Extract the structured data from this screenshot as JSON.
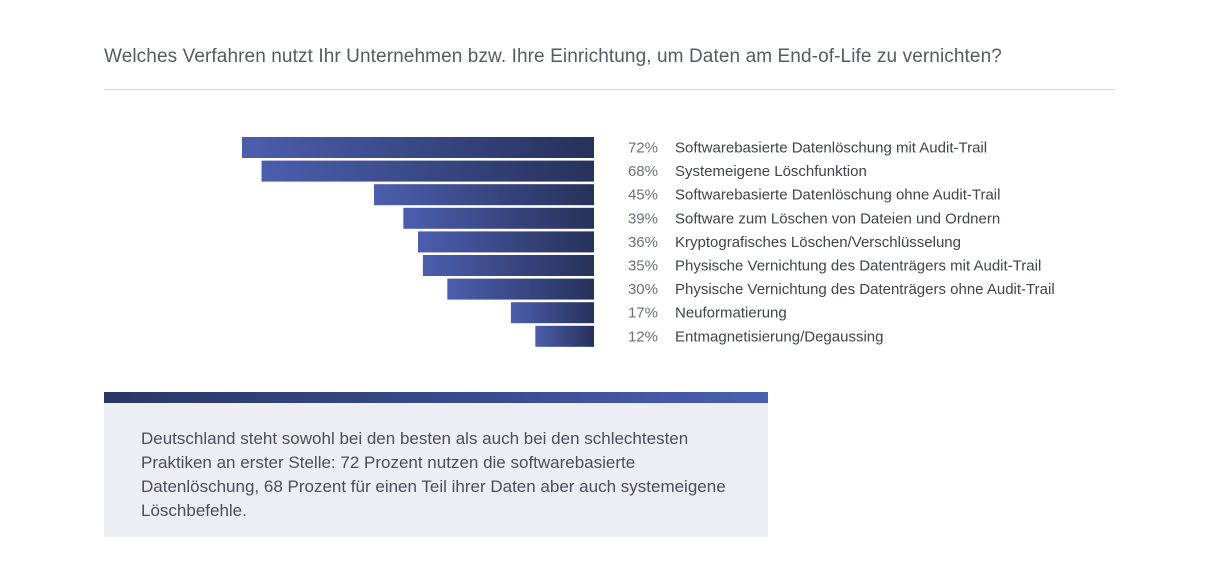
{
  "question": "Welches Verfahren nutzt Ihr Unternehmen bzw. Ihre Einrichtung, um Daten am End-of-Life zu vernichten?",
  "callout": {
    "text": "Deutschland steht sowohl bei den besten als auch bei den schlechtesten Praktiken an erster Stelle: 72 Prozent nutzen die softwarebasierte Datenlöschung, 68 Prozent für einen Teil ihrer Daten aber auch systemeigene Löschbefehle."
  },
  "colors": {
    "bar_light": "#4b5eae",
    "bar_dark": "#27315a",
    "accent": "#3a4d92"
  },
  "chart_data": {
    "type": "bar",
    "orientation": "horizontal",
    "direction": "right-to-left",
    "categories": [
      "Softwarebasierte Datenlöschung mit Audit-Trail",
      "Systemeigene Löschfunktion",
      "Softwarebasierte Datenlöschung ohne Audit-Trail",
      "Software zum Löschen von Dateien und Ordnern",
      "Kryptografisches Löschen/Verschlüsselung",
      "Physische Vernichtung des Datenträgers mit Audit-Trail",
      "Physische Vernichtung des Datenträgers ohne Audit-Trail",
      "Neuformatierung",
      "Entmagnetisierung/Degaussing"
    ],
    "values": [
      72,
      68,
      45,
      39,
      36,
      35,
      30,
      17,
      12
    ],
    "value_labels": [
      "72%",
      "68%",
      "45%",
      "39%",
      "36%",
      "35%",
      "30%",
      "17%",
      "12%"
    ],
    "unit": "%",
    "grid": false,
    "legend": "none"
  }
}
